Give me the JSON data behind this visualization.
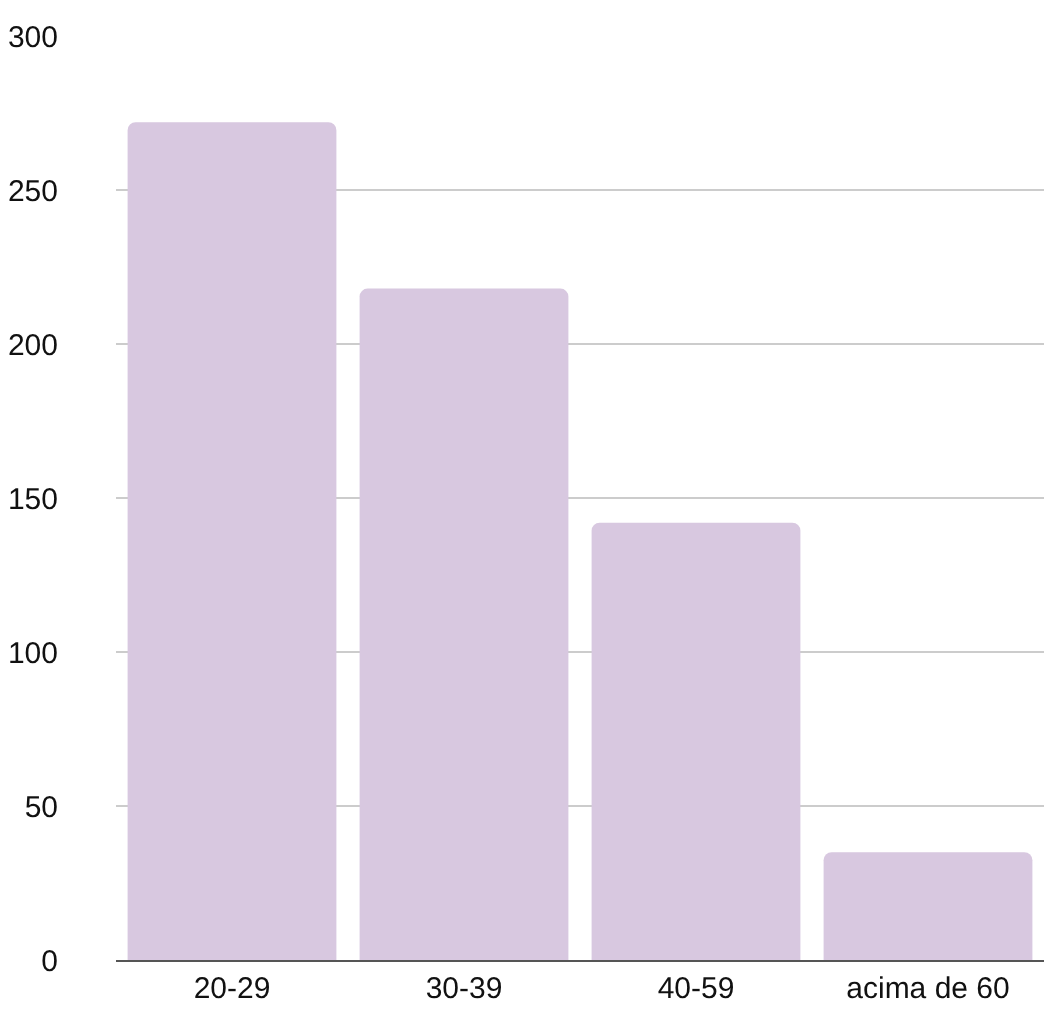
{
  "chart_data": {
    "type": "bar",
    "categories": [
      "20-29",
      "30-39",
      "40-59",
      "acima de 60"
    ],
    "values": [
      272,
      218,
      142,
      35
    ],
    "color": "#d8c8e0",
    "ylim": [
      0,
      300
    ],
    "yticks": [
      0,
      50,
      100,
      150,
      200,
      250,
      300
    ],
    "grid": "y"
  }
}
